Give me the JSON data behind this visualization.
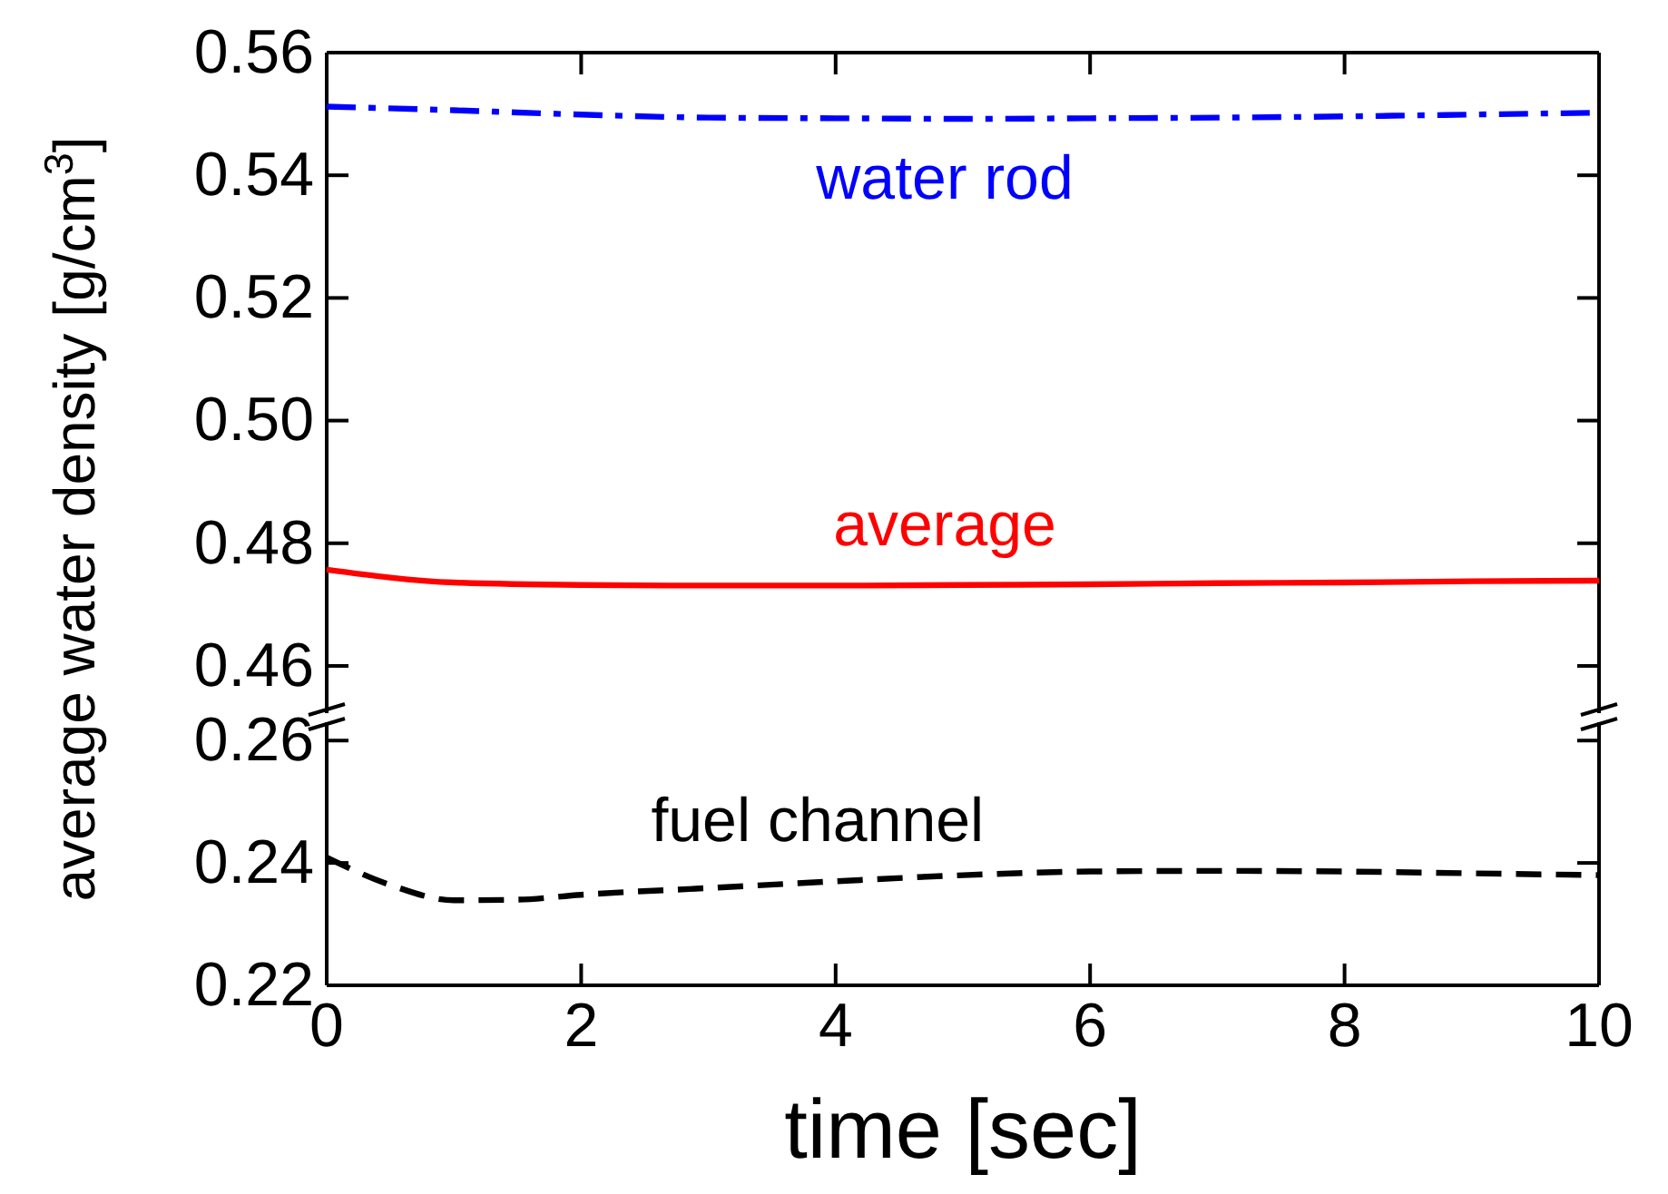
{
  "chart_data": [
    {
      "type": "line",
      "ylabel": "average water density [g/cm$^{3}$]",
      "xlim": [
        0,
        10
      ],
      "xticks": [
        0,
        2,
        4,
        6,
        8,
        10
      ],
      "ylim": [
        0.4523,
        0.56
      ],
      "yticks": [
        0.46,
        0.48,
        {
          "value": 0.5,
          "label": "0.50"
        },
        0.52,
        0.54,
        0.56
      ],
      "tick_labels": "y",
      "x": [
        0,
        1,
        2,
        3,
        4,
        5,
        6,
        7,
        8,
        9,
        10
      ],
      "series": [
        {
          "name": "water rod",
          "color": "#0000ff",
          "line_style": "dashdot",
          "values": [
            0.5512,
            0.5506,
            0.5499,
            0.5494,
            0.5493,
            0.5492,
            0.5493,
            0.5494,
            0.5496,
            0.5499,
            0.5502
          ]
        },
        {
          "name": "average",
          "color": "#ff0000",
          "line_style": "solid",
          "values": [
            0.4757,
            0.4736,
            0.4732,
            0.4731,
            0.4731,
            0.4732,
            0.4733,
            0.4735,
            0.4736,
            0.4738,
            0.4739
          ]
        }
      ]
    },
    {
      "type": "line",
      "xlabel": "time [sec]",
      "xlim": [
        0,
        10
      ],
      "xticks": [
        0,
        2,
        4,
        6,
        8,
        10
      ],
      "ylim": [
        0.22,
        0.263
      ],
      "yticks": [
        0.22,
        0.24,
        0.26
      ],
      "x": [
        0,
        0.5,
        1,
        1.5,
        2,
        3,
        4,
        5,
        6,
        7,
        8,
        9,
        10
      ],
      "series": [
        {
          "name": "fuel channel",
          "color": "#000000",
          "line_style": "dashed",
          "values": [
            0.2409,
            0.2364,
            0.2339,
            0.234,
            0.2348,
            0.2359,
            0.237,
            0.238,
            0.2386,
            0.2387,
            0.2386,
            0.2383,
            0.238
          ]
        }
      ]
    }
  ]
}
